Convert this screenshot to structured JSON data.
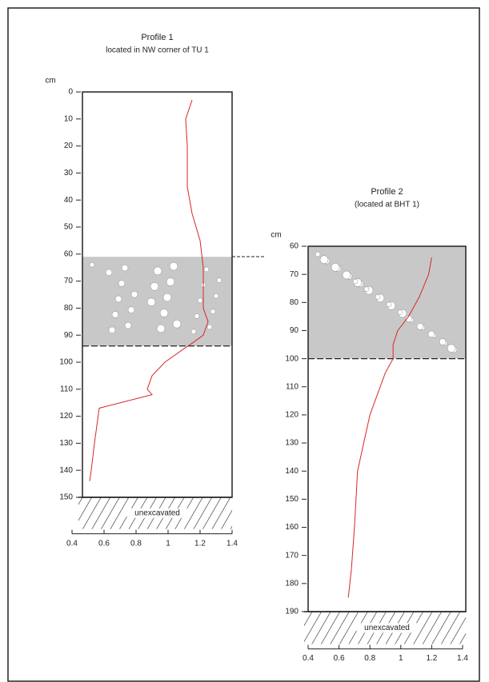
{
  "chart_data": [
    {
      "type": "line",
      "title": "Profile 1",
      "subtitle": "located in NW corner of TU 1",
      "y_unit": "cm",
      "xlim": [
        0.4,
        1.4
      ],
      "xticks": [
        0.4,
        0.6,
        0.8,
        1,
        1.2,
        1.4
      ],
      "ylim": [
        0,
        150
      ],
      "yticks": [
        0,
        10,
        20,
        30,
        40,
        50,
        60,
        70,
        80,
        90,
        100,
        110,
        120,
        130,
        140,
        150
      ],
      "gravel": [
        61,
        94
      ],
      "unexcavated": {
        "label": "unexcavated",
        "top": 150,
        "bottom": 157
      },
      "color": "#d62728",
      "values": [
        1.15,
        1.11,
        1.12,
        1.12,
        1.15,
        1.2,
        1.22,
        1.22,
        1.25,
        1.22,
        1.15,
        1.1,
        0.98,
        0.9,
        0.87,
        0.9,
        0.57,
        0.54,
        0.52,
        0.51
      ],
      "depths": [
        3,
        10,
        20,
        35,
        45,
        55,
        65,
        80,
        85,
        90,
        93,
        95,
        100,
        105,
        110,
        112,
        117,
        130,
        140,
        144
      ]
    },
    {
      "type": "line",
      "title": "Profile 2",
      "subtitle": "(located at BHT 1)",
      "y_unit": "cm",
      "xlim": [
        0.4,
        1.4
      ],
      "xticks": [
        0.4,
        0.6,
        0.8,
        1,
        1.2,
        1.4
      ],
      "ylim": [
        60,
        190
      ],
      "yticks": [
        60,
        70,
        80,
        90,
        100,
        110,
        120,
        130,
        140,
        150,
        160,
        170,
        180,
        190
      ],
      "gravel": [
        60,
        100
      ],
      "unexcavated": {
        "label": "unexcavated",
        "top": 190,
        "bottom": 197
      },
      "color": "#d62728",
      "values": [
        1.2,
        1.18,
        1.12,
        1.05,
        0.98,
        0.95,
        0.95,
        0.9,
        0.8,
        0.72,
        0.7,
        0.68,
        0.66
      ],
      "depths": [
        64,
        70,
        78,
        85,
        90,
        95,
        100,
        105,
        120,
        140,
        160,
        175,
        185
      ]
    }
  ]
}
